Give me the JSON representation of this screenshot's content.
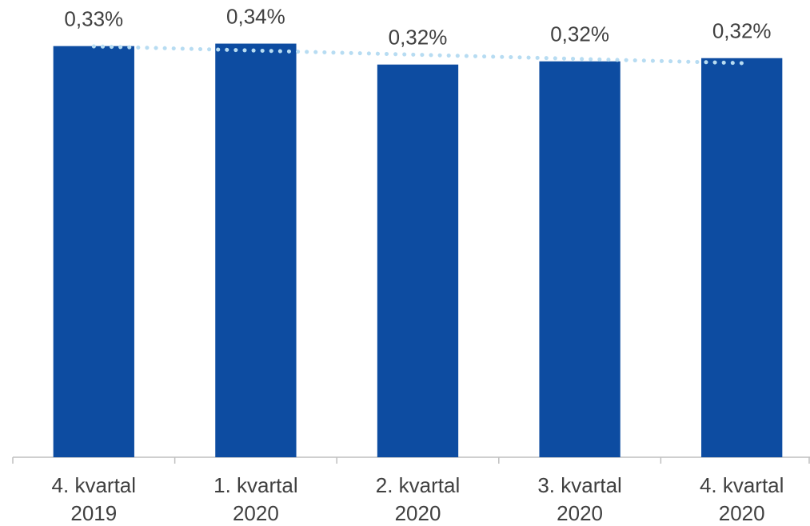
{
  "chart_data": {
    "type": "bar",
    "categories": [
      [
        "4. kvartal",
        "2019"
      ],
      [
        "1. kvartal",
        "2020"
      ],
      [
        "2. kvartal",
        "2020"
      ],
      [
        "3. kvartal",
        "2020"
      ],
      [
        "4. kvartal",
        "2020"
      ]
    ],
    "values": [
      0.334,
      0.336,
      0.319,
      0.3216,
      0.3242
    ],
    "value_labels": [
      "0,33%",
      "0,34%",
      "0,32%",
      "0,32%",
      "0,32%"
    ],
    "color": "#0d4ca1",
    "trendline_color": "#b7dcf2",
    "ylim": [
      0,
      0.35
    ]
  }
}
